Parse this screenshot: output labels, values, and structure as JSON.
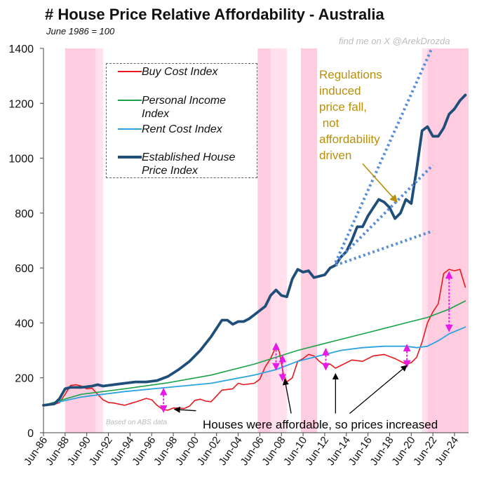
{
  "title": "# House Price Relative Affordability - Australia",
  "subtitle": "June 1986 = 100",
  "credit": "find me on X @ArekDrozda",
  "source_note": "Based on ABS data",
  "annotations": {
    "regulations": "Regulations\ninduced\nprice fall,\n not\naffordability\ndriven",
    "affordable": "Houses were affordable, so prices increased"
  },
  "colors": {
    "buy": "#e8191d",
    "income": "#1aa34a",
    "rent": "#2ba3e0",
    "house": "#1f4e79",
    "shade": "#ffc6dd",
    "trend": "#5b8ed4",
    "arrow": "#e619e6",
    "gold": "#b8900a"
  },
  "chart_data": {
    "type": "line",
    "title": "# House Price Relative Affordability - Australia",
    "xlabel": "",
    "ylabel": "",
    "ylim": [
      0,
      1400
    ],
    "yticks": [
      0,
      200,
      400,
      600,
      800,
      1000,
      1200,
      1400
    ],
    "xlim": [
      1986.5,
      2025.8
    ],
    "xtick_labels": [
      "Jun-86",
      "Jun-88",
      "Jun-90",
      "Jun-92",
      "Jun-94",
      "Jun-96",
      "Jun-98",
      "Jun-00",
      "Jun-02",
      "Jun-04",
      "Jun-06",
      "Jun-08",
      "Jun-10",
      "Jun-12",
      "Jun-14",
      "Jun-16",
      "Jun-18",
      "Jun-20",
      "Jun-22",
      "Jun-24"
    ],
    "xtick_years": [
      1986.5,
      1988.5,
      1990.5,
      1992.5,
      1994.5,
      1996.5,
      1998.5,
      2000.5,
      2002.5,
      2004.5,
      2006.5,
      2008.5,
      2010.5,
      2012.5,
      2014.5,
      2016.5,
      2018.5,
      2020.5,
      2022.5,
      2024.5
    ],
    "shaded_periods": [
      [
        1988.5,
        1991.3
      ],
      [
        1991.3,
        1992.0
      ],
      [
        2006.3,
        2007.5
      ],
      [
        2007.5,
        2009.0
      ],
      [
        2010.3,
        2011.8
      ],
      [
        2021.5,
        2022.0
      ],
      [
        2022.0,
        2025.8
      ]
    ],
    "series": [
      {
        "name": "Buy Cost Index",
        "key": "buy",
        "x": [
          1986.5,
          1987.5,
          1988.0,
          1988.5,
          1989.0,
          1989.5,
          1990.0,
          1990.5,
          1991.0,
          1991.5,
          1992.0,
          1992.5,
          1993.0,
          1994.0,
          1995.0,
          1996.0,
          1996.5,
          1997.0,
          1997.5,
          1998.0,
          1998.5,
          1999.0,
          1999.5,
          2000.0,
          2000.5,
          2001.0,
          2001.5,
          2002.0,
          2003.0,
          2004.0,
          2004.5,
          2005.0,
          2006.0,
          2006.5,
          2007.0,
          2007.5,
          2008.0,
          2008.3,
          2008.7,
          2009.0,
          2009.5,
          2010.0,
          2010.5,
          2011.0,
          2011.5,
          2012.0,
          2012.5,
          2013.0,
          2013.5,
          2014.0,
          2015.0,
          2016.0,
          2017.0,
          2018.0,
          2019.0,
          2019.5,
          2020.0,
          2020.5,
          2021.0,
          2021.5,
          2022.0,
          2022.5,
          2023.0,
          2023.5,
          2024.0,
          2024.5,
          2025.0,
          2025.5
        ],
        "values": [
          100,
          103,
          110,
          140,
          172,
          175,
          170,
          160,
          162,
          140,
          120,
          110,
          108,
          100,
          112,
          125,
          120,
          100,
          85,
          82,
          90,
          90,
          88,
          97,
          118,
          122,
          115,
          113,
          155,
          160,
          180,
          175,
          180,
          195,
          240,
          270,
          315,
          295,
          210,
          185,
          200,
          260,
          270,
          285,
          280,
          260,
          245,
          250,
          235,
          245,
          265,
          260,
          280,
          285,
          270,
          260,
          250,
          255,
          275,
          330,
          400,
          440,
          470,
          580,
          595,
          590,
          595,
          530
        ]
      },
      {
        "name": "Personal Income Index",
        "key": "income",
        "x": [
          1986.5,
          1990.0,
          1994.0,
          1998.0,
          2002.0,
          2006.0,
          2008.0,
          2010.0,
          2012.0,
          2014.0,
          2016.0,
          2018.0,
          2020.0,
          2022.0,
          2024.0,
          2025.5
        ],
        "values": [
          100,
          140,
          160,
          182,
          210,
          250,
          275,
          300,
          320,
          340,
          360,
          380,
          400,
          420,
          450,
          480
        ]
      },
      {
        "name": "Rent Cost Index",
        "key": "rent",
        "x": [
          1986.5,
          1990.0,
          1994.0,
          1998.0,
          2002.0,
          2006.0,
          2008.0,
          2010.0,
          2012.0,
          2014.0,
          2016.0,
          2018.0,
          2020.0,
          2021.0,
          2022.0,
          2023.0,
          2024.0,
          2025.5
        ],
        "values": [
          100,
          130,
          150,
          165,
          180,
          210,
          230,
          260,
          280,
          300,
          310,
          315,
          315,
          310,
          315,
          335,
          360,
          385
        ]
      },
      {
        "name": "Established House Price Index",
        "key": "house",
        "x": [
          1986.5,
          1987.5,
          1988.0,
          1988.5,
          1989.0,
          1990.0,
          1991.0,
          1991.5,
          1992.0,
          1993.0,
          1994.0,
          1995.0,
          1996.0,
          1997.0,
          1998.0,
          1999.0,
          2000.0,
          2001.0,
          2002.0,
          2003.0,
          2003.5,
          2004.0,
          2004.5,
          2005.0,
          2005.5,
          2006.0,
          2006.5,
          2007.0,
          2007.5,
          2008.0,
          2008.5,
          2009.0,
          2009.5,
          2010.0,
          2010.5,
          2011.0,
          2011.5,
          2012.0,
          2012.5,
          2013.0,
          2013.5,
          2014.0,
          2014.5,
          2015.0,
          2015.5,
          2016.0,
          2016.5,
          2017.0,
          2017.5,
          2018.0,
          2018.5,
          2019.0,
          2019.5,
          2020.0,
          2020.5,
          2021.0,
          2021.5,
          2022.0,
          2022.5,
          2023.0,
          2023.5,
          2024.0,
          2024.5,
          2025.0,
          2025.5
        ],
        "values": [
          100,
          105,
          125,
          160,
          165,
          165,
          170,
          175,
          170,
          175,
          180,
          185,
          185,
          190,
          205,
          230,
          260,
          300,
          350,
          410,
          410,
          395,
          405,
          405,
          415,
          430,
          445,
          460,
          500,
          520,
          500,
          495,
          560,
          595,
          585,
          590,
          565,
          570,
          575,
          600,
          610,
          640,
          660,
          700,
          750,
          750,
          790,
          820,
          850,
          840,
          820,
          780,
          800,
          850,
          835,
          960,
          1100,
          1115,
          1080,
          1080,
          1110,
          1160,
          1180,
          1210,
          1230
        ]
      }
    ],
    "trend_lines": [
      {
        "from": [
          2013.5,
          620
        ],
        "to": [
          2022.4,
          1400
        ]
      },
      {
        "from": [
          2013.5,
          620
        ],
        "to": [
          2022.5,
          975
        ]
      },
      {
        "from": [
          2013.5,
          610
        ],
        "to": [
          2022.5,
          735
        ]
      }
    ],
    "spread_arrows": [
      {
        "x": 1997.6,
        "y1": 150,
        "y2": 86
      },
      {
        "x": 2008.0,
        "y1": 315,
        "y2": 240
      },
      {
        "x": 2008.6,
        "y1": 270,
        "y2": 200
      },
      {
        "x": 2012.6,
        "y1": 295,
        "y2": 240
      },
      {
        "x": 2020.1,
        "y1": 310,
        "y2": 250
      },
      {
        "x": 2024.0,
        "y1": 575,
        "y2": 380
      }
    ],
    "pointer_arrows": [
      {
        "from": [
          2000.6,
          80
        ],
        "to": [
          1998.6,
          85
        ]
      },
      {
        "from": [
          2009.4,
          70
        ],
        "to": [
          2008.8,
          195
        ]
      },
      {
        "from": [
          2013.5,
          70
        ],
        "to": [
          2013.5,
          215
        ]
      },
      {
        "from": [
          2014.8,
          70
        ],
        "to": [
          2020.1,
          245
        ]
      }
    ],
    "gold_arrow": {
      "from": [
        2016.0,
        980
      ],
      "to": [
        2019.2,
        840
      ]
    }
  }
}
